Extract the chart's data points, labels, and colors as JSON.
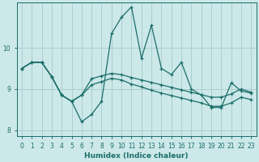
{
  "xlabel": "Humidex (Indice chaleur)",
  "bg_color": "#cce8e8",
  "grid_color": "#aacfcf",
  "line_color": "#1a6e6a",
  "xlim": [
    -0.5,
    23.5
  ],
  "ylim": [
    7.85,
    11.1
  ],
  "yticks": [
    8,
    9,
    10
  ],
  "xticks": [
    0,
    1,
    2,
    3,
    4,
    5,
    6,
    7,
    8,
    9,
    10,
    11,
    12,
    13,
    14,
    15,
    16,
    17,
    18,
    19,
    20,
    21,
    22,
    23
  ],
  "line1_x": [
    0,
    1,
    2,
    3,
    4,
    5,
    6,
    7,
    8,
    9,
    10,
    11,
    12,
    13,
    14,
    15,
    16,
    17,
    18,
    19,
    20,
    21,
    22,
    23
  ],
  "line1_y": [
    9.5,
    9.65,
    9.65,
    9.3,
    8.85,
    8.7,
    8.2,
    8.38,
    8.7,
    10.35,
    10.75,
    11.0,
    9.75,
    10.55,
    9.5,
    9.35,
    9.65,
    9.0,
    8.85,
    8.55,
    8.55,
    9.15,
    8.95,
    8.9
  ],
  "line2_x": [
    0,
    1,
    2,
    3,
    4,
    5,
    6,
    7,
    8,
    9,
    10,
    11,
    12,
    13,
    14,
    15,
    16,
    17,
    18,
    19,
    20,
    21,
    22,
    23
  ],
  "line2_y": [
    9.5,
    9.65,
    9.65,
    9.3,
    8.85,
    8.7,
    8.85,
    9.25,
    9.32,
    9.38,
    9.35,
    9.28,
    9.22,
    9.16,
    9.1,
    9.04,
    8.98,
    8.92,
    8.86,
    8.8,
    8.8,
    8.88,
    9.0,
    8.92
  ],
  "line3_x": [
    0,
    1,
    2,
    3,
    4,
    5,
    6,
    7,
    8,
    9,
    10,
    11,
    12,
    13,
    14,
    15,
    16,
    17,
    18,
    19,
    20,
    21,
    22,
    23
  ],
  "line3_y": [
    9.5,
    9.65,
    9.65,
    9.3,
    8.85,
    8.7,
    8.85,
    9.1,
    9.18,
    9.26,
    9.22,
    9.12,
    9.05,
    8.97,
    8.9,
    8.84,
    8.78,
    8.72,
    8.66,
    8.58,
    8.58,
    8.66,
    8.8,
    8.74
  ]
}
